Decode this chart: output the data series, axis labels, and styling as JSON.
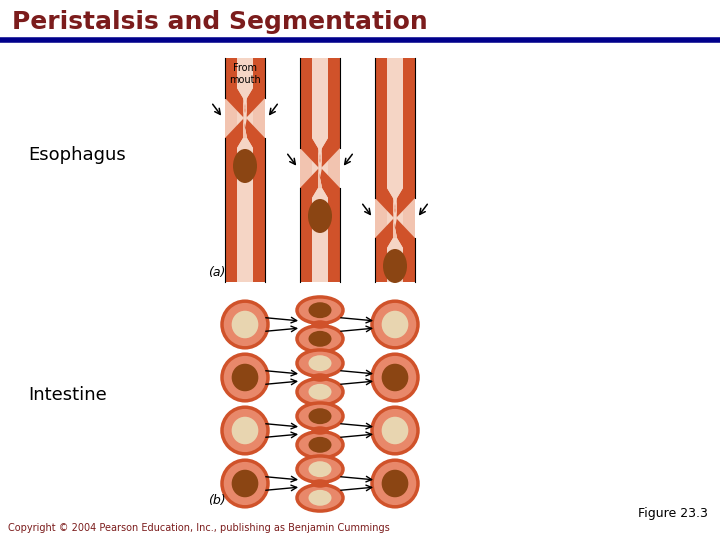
{
  "title": "Peristalsis and Segmentation",
  "title_color": "#7B1C1C",
  "title_line_color": "#00008B",
  "label_esophagus": "Esophagus",
  "label_intestine": "Intestine",
  "label_from_mouth": "From\nmouth",
  "label_a": "(a)",
  "label_b": "(b)",
  "label_figure": "Figure 23.3",
  "label_copyright": "Copyright © 2004 Pearson Education, Inc., publishing as Benjamin Cummings",
  "bg_color": "#FFFFFF",
  "orange_dark": "#D0522A",
  "orange_light": "#E8886A",
  "pink_light": "#F2C4B0",
  "brown_dark": "#6B2A00",
  "brown_mid": "#8B4513",
  "cream": "#E8D5B0",
  "stripe_light": "#F5D5C5"
}
